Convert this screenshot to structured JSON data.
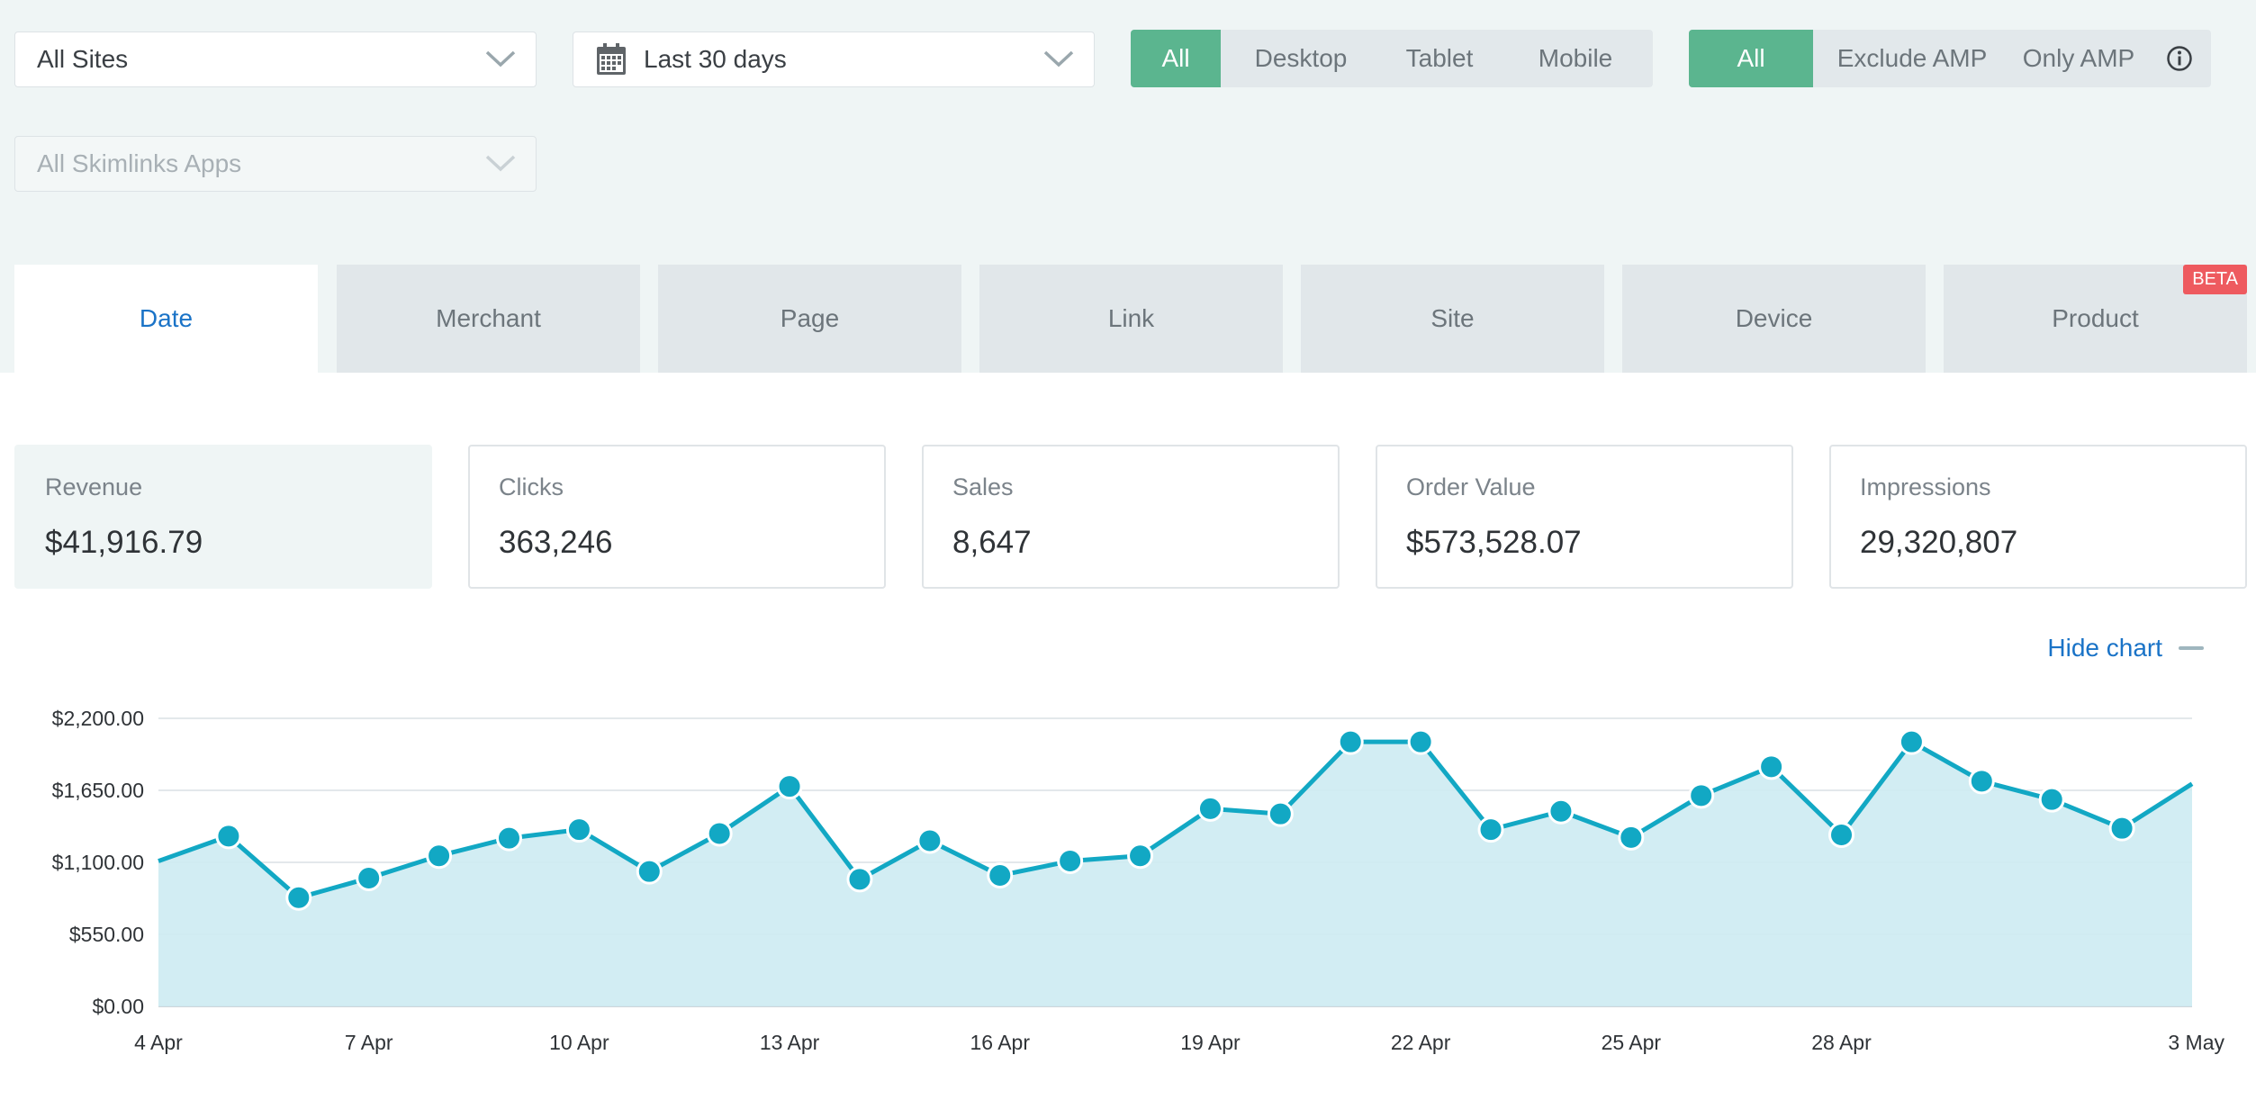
{
  "filters": {
    "site_select": "All Sites",
    "date_select": "Last 30 days",
    "apps_select": "All Skimlinks Apps"
  },
  "device_toggle": [
    "All",
    "Desktop",
    "Tablet",
    "Mobile"
  ],
  "device_active": "All",
  "amp_toggle": [
    "All",
    "Exclude AMP",
    "Only AMP"
  ],
  "amp_active": "All",
  "tabs": [
    {
      "label": "Date",
      "active": true
    },
    {
      "label": "Merchant"
    },
    {
      "label": "Page"
    },
    {
      "label": "Link"
    },
    {
      "label": "Site"
    },
    {
      "label": "Device"
    },
    {
      "label": "Product",
      "badge": "BETA"
    }
  ],
  "metrics": [
    {
      "label": "Revenue",
      "value": "$41,916.79",
      "active": true
    },
    {
      "label": "Clicks",
      "value": "363,246"
    },
    {
      "label": "Sales",
      "value": "8,647"
    },
    {
      "label": "Order Value",
      "value": "$573,528.07"
    },
    {
      "label": "Impressions",
      "value": "29,320,807"
    }
  ],
  "hide_chart_label": "Hide chart",
  "colors": {
    "accent_green": "#5bb58f",
    "link_blue": "#1a73c7",
    "line": "#12a8c4",
    "area": "#cdebf2",
    "beta": "#ee5a5f"
  },
  "chart_data": {
    "type": "area",
    "x": [
      "4 Apr",
      "5 Apr",
      "6 Apr",
      "7 Apr",
      "8 Apr",
      "9 Apr",
      "10 Apr",
      "11 Apr",
      "12 Apr",
      "13 Apr",
      "14 Apr",
      "15 Apr",
      "16 Apr",
      "17 Apr",
      "18 Apr",
      "19 Apr",
      "20 Apr",
      "21 Apr",
      "22 Apr",
      "23 Apr",
      "24 Apr",
      "25 Apr",
      "26 Apr",
      "27 Apr",
      "28 Apr",
      "29 Apr",
      "30 Apr",
      "1 May",
      "2 May",
      "3 May"
    ],
    "x_tick_labels": [
      "4 Apr",
      "7 Apr",
      "10 Apr",
      "13 Apr",
      "16 Apr",
      "19 Apr",
      "22 Apr",
      "25 Apr",
      "28 Apr",
      "3 May"
    ],
    "series": [
      {
        "values": [
          1110,
          1300,
          830,
          980,
          1150,
          1285,
          1350,
          1030,
          1320,
          1680,
          970,
          1265,
          1000,
          1110,
          1150,
          1510,
          1470,
          2020,
          2020,
          1350,
          1490,
          1290,
          1610,
          1830,
          1310,
          2020,
          1720,
          1580,
          1360,
          1700
        ]
      }
    ],
    "y_ticks": [
      "$0.00",
      "$550.00",
      "$1,100.00",
      "$1,650.00",
      "$2,200.00"
    ],
    "ylim": [
      0,
      2200
    ],
    "grid": true
  }
}
